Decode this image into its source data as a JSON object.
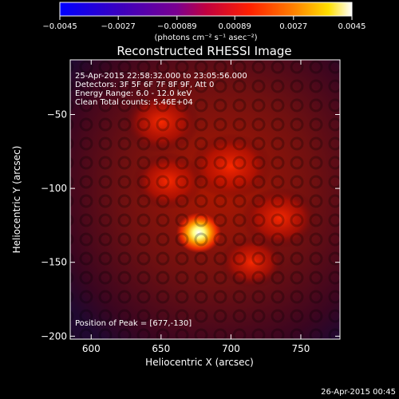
{
  "colors": {
    "background": "#000000",
    "text": "#ffffff",
    "peak": "#ffffe0",
    "core": "#ff4000",
    "outer": "#3a0020",
    "negative": "#1a0a40"
  },
  "colorbar": {
    "ticks": [
      "-0.0045",
      "-0.0027",
      "-0.00089",
      "0.00089",
      "0.0027",
      "0.0045"
    ],
    "unit_label": "(photons cm⁻² s⁻¹ asec⁻²)",
    "range": [
      -0.0045,
      0.0045
    ],
    "colormap": "blue-purple-red-yellow-white"
  },
  "chart_data": {
    "type": "heatmap",
    "title": "Reconstructed RHESSI Image",
    "xlabel": "Heliocentric X (arcsec)",
    "ylabel": "Heliocentric Y (arcsec)",
    "xlim": [
      585,
      778
    ],
    "ylim": [
      -202,
      -13
    ],
    "xticks": [
      600,
      650,
      700,
      750
    ],
    "yticks": [
      -50,
      -100,
      -150,
      -200
    ],
    "xtick_labels": [
      "600",
      "650",
      "700",
      "750"
    ],
    "ytick_labels": [
      "−50",
      "−100",
      "−150",
      "−200"
    ],
    "annotations": [
      "25-Apr-2015 22:58:32.000 to 23:05:56.000",
      "Detectors: 3F 5F 6F 7F 8F 9F, Att 0",
      "Energy Range: 6.0 - 12.0 keV",
      "Clean     Total counts: 5.46E+04"
    ],
    "peak_label": "Position of Peak = [677,-130]",
    "peak": [
      677,
      -130
    ],
    "emission": [
      {
        "x": 700,
        "y": -85,
        "level": 0.45
      },
      {
        "x": 650,
        "y": -55,
        "level": 0.4
      },
      {
        "x": 735,
        "y": -120,
        "level": 0.4
      },
      {
        "x": 655,
        "y": -95,
        "level": 0.35
      },
      {
        "x": 715,
        "y": -150,
        "level": 0.3
      },
      {
        "x": 677,
        "y": -130,
        "level": 1.0
      }
    ]
  },
  "footer": {
    "timestamp": "26-Apr-2015 00:45"
  }
}
